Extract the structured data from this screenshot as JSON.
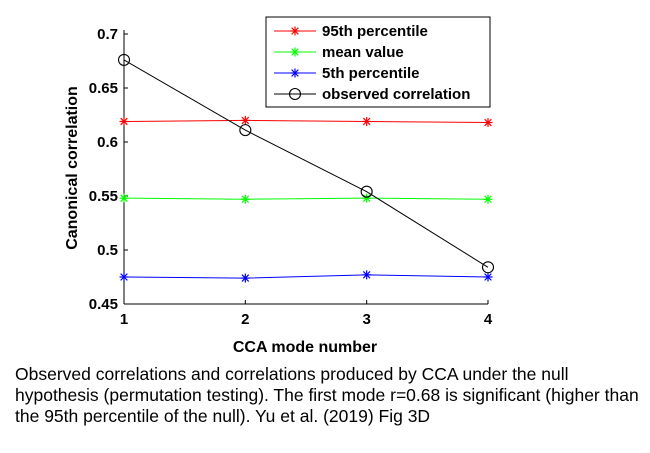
{
  "chart_data": {
    "type": "line",
    "xlabel": "CCA mode number",
    "ylabel": "Canonical correlation",
    "x": [
      1,
      2,
      3,
      4
    ],
    "xticks": [
      "1",
      "2",
      "3",
      "4"
    ],
    "xlim": [
      1,
      4
    ],
    "ylim": [
      0.45,
      0.7
    ],
    "yticks": [
      "0.45",
      "0.5",
      "0.55",
      "0.6",
      "0.65",
      "0.7"
    ],
    "grid": false,
    "legend_position": "top-right",
    "series": [
      {
        "name": "95th percentile",
        "color": "#ff0000",
        "marker": "star",
        "values": [
          0.619,
          0.62,
          0.619,
          0.618
        ]
      },
      {
        "name": "mean value",
        "color": "#00ff00",
        "marker": "star",
        "values": [
          0.548,
          0.547,
          0.548,
          0.547
        ]
      },
      {
        "name": "5th percentile",
        "color": "#0000ff",
        "marker": "star",
        "values": [
          0.475,
          0.474,
          0.477,
          0.475
        ]
      },
      {
        "name": "observed correlation",
        "color": "#000000",
        "marker": "circle",
        "values": [
          0.676,
          0.611,
          0.554,
          0.484
        ]
      }
    ]
  },
  "caption": "Observed correlations and correlations produced by CCA under the null hypothesis (permutation testing). The first mode r=0.68 is significant (higher than the 95th percentile of the null). Yu et al. (2019) Fig 3D"
}
